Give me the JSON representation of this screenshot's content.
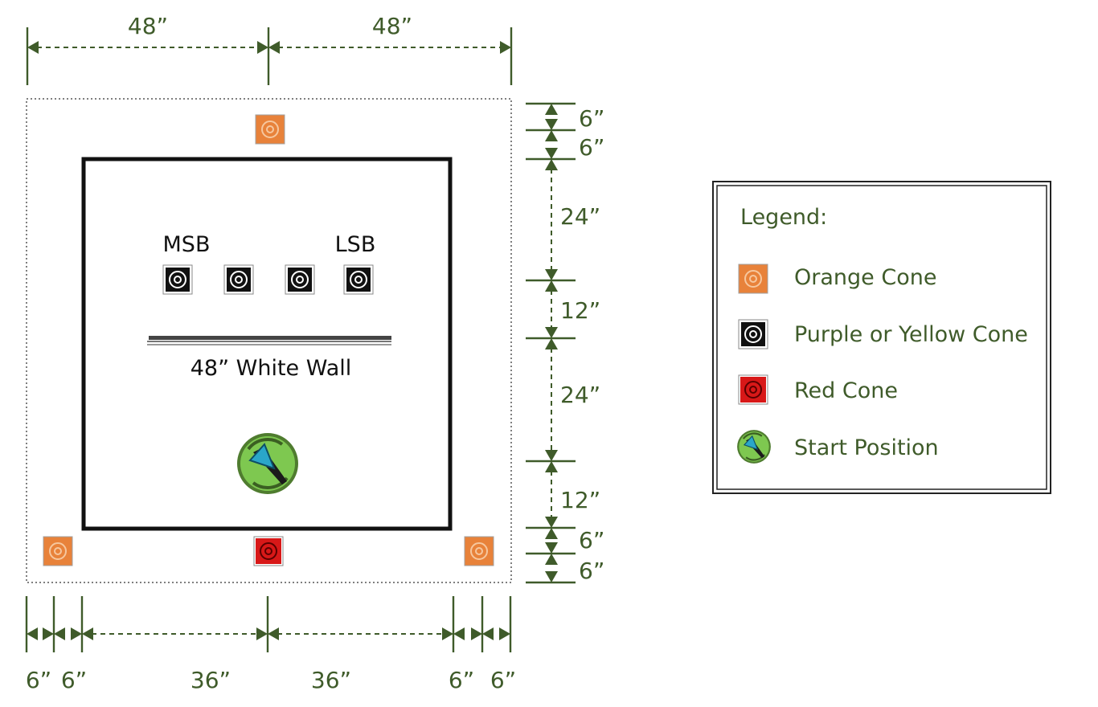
{
  "top_dims": [
    "48”",
    "48”"
  ],
  "right_dims": [
    "6”",
    "6”",
    "24”",
    "12”",
    "24”",
    "12”",
    "6”",
    "6”"
  ],
  "bottom_dims": [
    "6”",
    "6”",
    "36”",
    "36”",
    "6”",
    "6”"
  ],
  "field": {
    "label_msb": "MSB",
    "label_lsb": "LSB",
    "wall_label": "48” White Wall"
  },
  "legend": {
    "title": "Legend:",
    "items": [
      {
        "label": "Orange Cone",
        "icon": "orange-cone-icon"
      },
      {
        "label": "Purple or Yellow Cone",
        "icon": "purple-yellow-cone-icon"
      },
      {
        "label": "Red Cone",
        "icon": "red-cone-icon"
      },
      {
        "label": "Start Position",
        "icon": "start-position-icon"
      }
    ]
  },
  "colors": {
    "dimension": "#3f5b2a",
    "orange_cone": "#e8823a",
    "purple_yellow_cone": "#111111",
    "red_cone": "#d81818",
    "start_green": "#6fbf3b",
    "start_arrow": "#2aa6c9"
  }
}
